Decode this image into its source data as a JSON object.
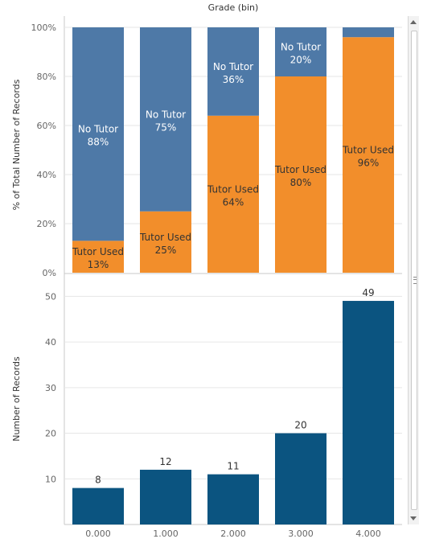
{
  "chart_data": [
    {
      "type": "bar",
      "stacked": true,
      "header": "Grade (bin)",
      "ylabel": "% of Total Number of Records",
      "ylim": [
        0,
        100
      ],
      "yticks": [
        "0%",
        "20%",
        "40%",
        "60%",
        "80%",
        "100%"
      ],
      "categories": [
        "0.000",
        "1.000",
        "2.000",
        "3.000",
        "4.000"
      ],
      "series": [
        {
          "name": "Tutor Used",
          "color": "#f28e2b",
          "values": [
            13,
            25,
            64,
            80,
            96
          ],
          "labels": [
            "13%",
            "25%",
            "64%",
            "80%",
            "96%"
          ]
        },
        {
          "name": "No Tutor",
          "color": "#4e79a7",
          "values": [
            88,
            75,
            36,
            20,
            4
          ],
          "labels": [
            "88%",
            "75%",
            "36%",
            "20%",
            ""
          ]
        }
      ],
      "grid": true
    },
    {
      "type": "bar",
      "ylabel": "Number of Records",
      "ylim": [
        0,
        55
      ],
      "yticks": [
        "10",
        "20",
        "30",
        "40",
        "50"
      ],
      "categories": [
        "0.000",
        "1.000",
        "2.000",
        "3.000",
        "4.000"
      ],
      "values": [
        8,
        12,
        11,
        20,
        49
      ],
      "labels": [
        "8",
        "12",
        "11",
        "20",
        "49"
      ],
      "color": "#0b5480",
      "grid": true
    }
  ]
}
